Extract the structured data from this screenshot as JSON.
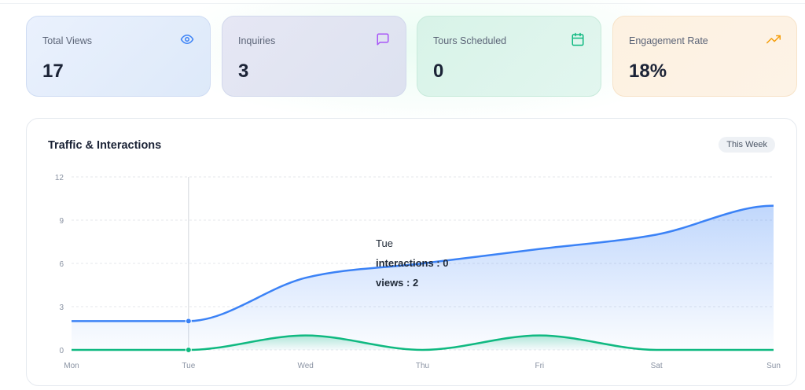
{
  "stats": [
    {
      "label": "Total Views",
      "value": "17",
      "icon": "eye-icon",
      "color": "#3b82f6"
    },
    {
      "label": "Inquiries",
      "value": "3",
      "icon": "message-square-icon",
      "color": "#a855f7"
    },
    {
      "label": "Tours Scheduled",
      "value": "0",
      "icon": "calendar-icon",
      "color": "#10b981"
    },
    {
      "label": "Engagement Rate",
      "value": "18%",
      "icon": "trending-up-icon",
      "color": "#f59e0b"
    }
  ],
  "chart_panel": {
    "title": "Traffic & Interactions",
    "range_label": "This Week"
  },
  "tooltip": {
    "title": "Tue",
    "rows": [
      "interactions : 0",
      "views : 2"
    ]
  },
  "chart_data": {
    "type": "area",
    "title": "Traffic & Interactions",
    "categories": [
      "Mon",
      "Tue",
      "Wed",
      "Thu",
      "Fri",
      "Sat",
      "Sun"
    ],
    "series": [
      {
        "name": "views",
        "color": "#3b82f6",
        "values": [
          2,
          2,
          5,
          6,
          7,
          8,
          10
        ]
      },
      {
        "name": "interactions",
        "color": "#10b981",
        "values": [
          0,
          0,
          1,
          0,
          1,
          0,
          0
        ]
      }
    ],
    "yticks": [
      0,
      3,
      6,
      9,
      12
    ],
    "ylim": [
      0,
      12
    ],
    "grid": true,
    "legend": "none",
    "active_category": "Tue"
  }
}
